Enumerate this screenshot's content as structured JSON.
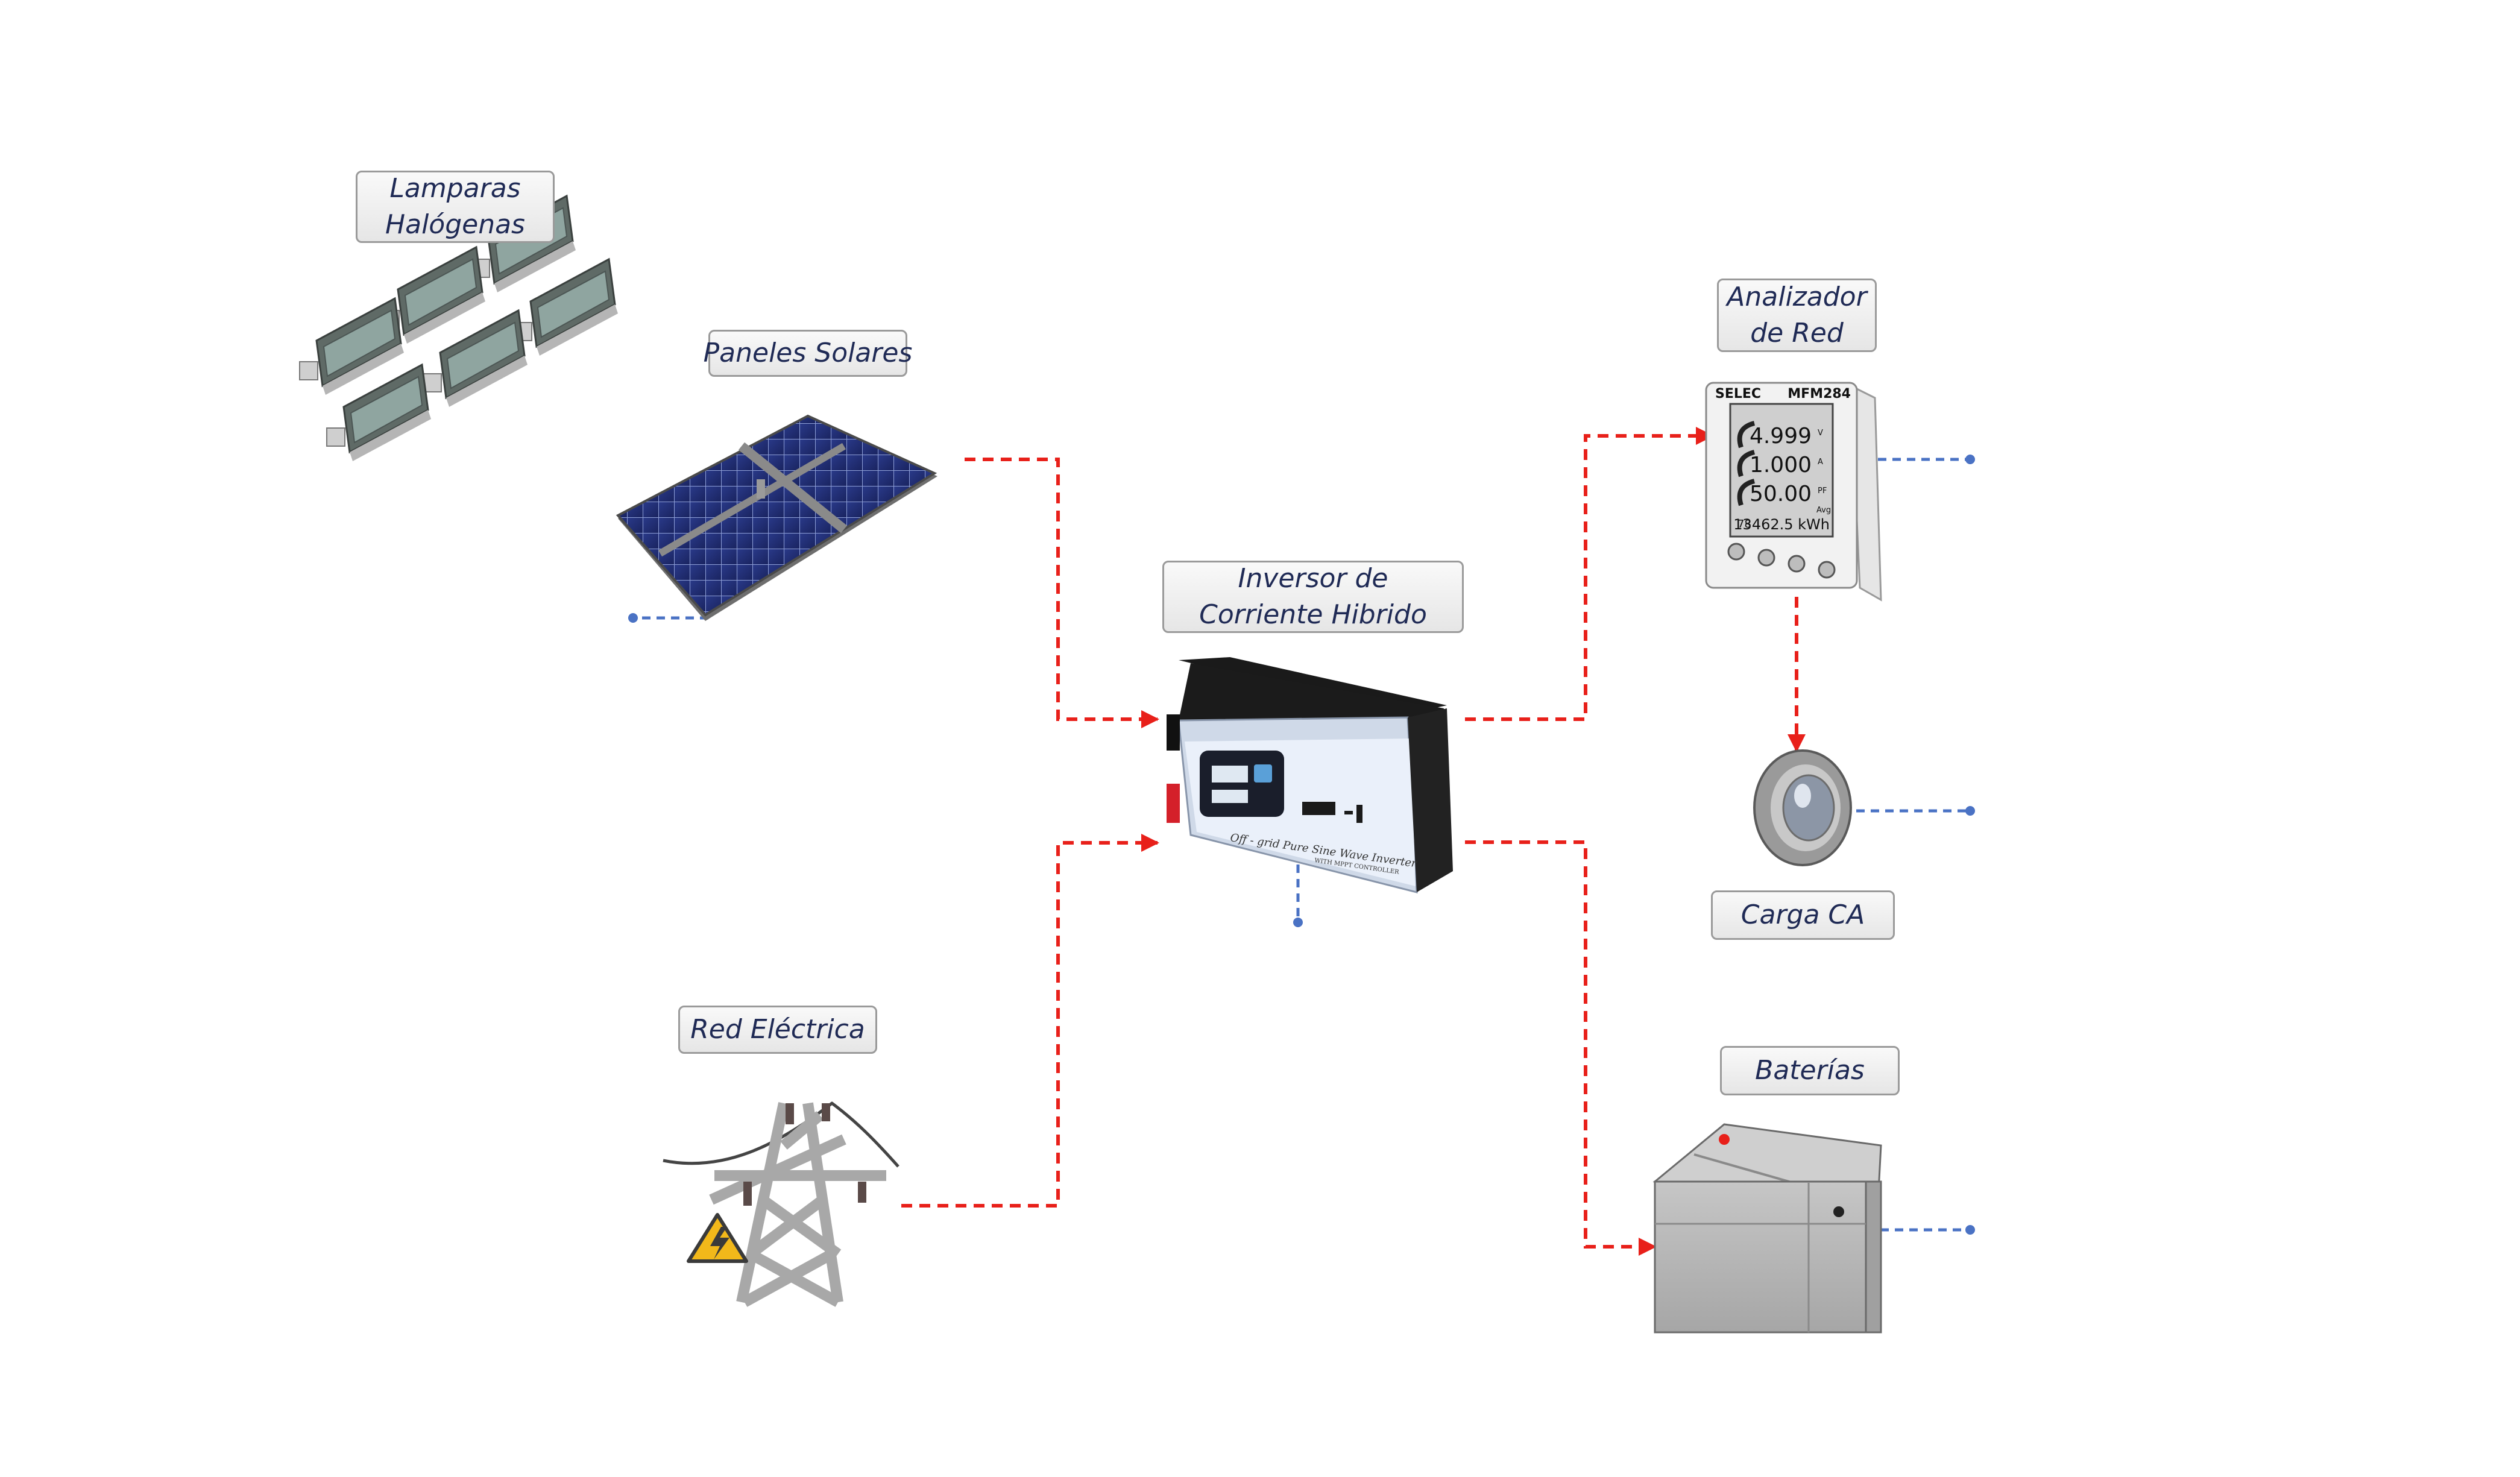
{
  "labels": {
    "lamparas": [
      "Lamparas",
      "Halógenas"
    ],
    "paneles": [
      "Paneles Solares"
    ],
    "inversor": [
      "Inversor de",
      "Corriente Hibrido"
    ],
    "analizador": [
      "Analizador",
      "de Red"
    ],
    "carga": [
      "Carga CA"
    ],
    "red": [
      "Red Eléctrica"
    ],
    "baterias": [
      "Baterías"
    ]
  },
  "meter": {
    "brand": "SELEC",
    "model": "MFM284",
    "readings": [
      {
        "value": "4.999",
        "unit": "V"
      },
      {
        "value": "1.000",
        "unit": "A"
      },
      {
        "value": "50.00",
        "unit": "PF"
      }
    ],
    "avg": "Avg",
    "energy_index": "78",
    "energy": "13462.5 kWh"
  },
  "inverter": {
    "caption": "Off - grid Pure Sine Wave Inverter",
    "sub_caption": "WITH MPPT CONTROLLER"
  },
  "colors": {
    "power_line": "#e8201a",
    "data_line": "#4a72c4",
    "label_text": "#1f2a55"
  }
}
